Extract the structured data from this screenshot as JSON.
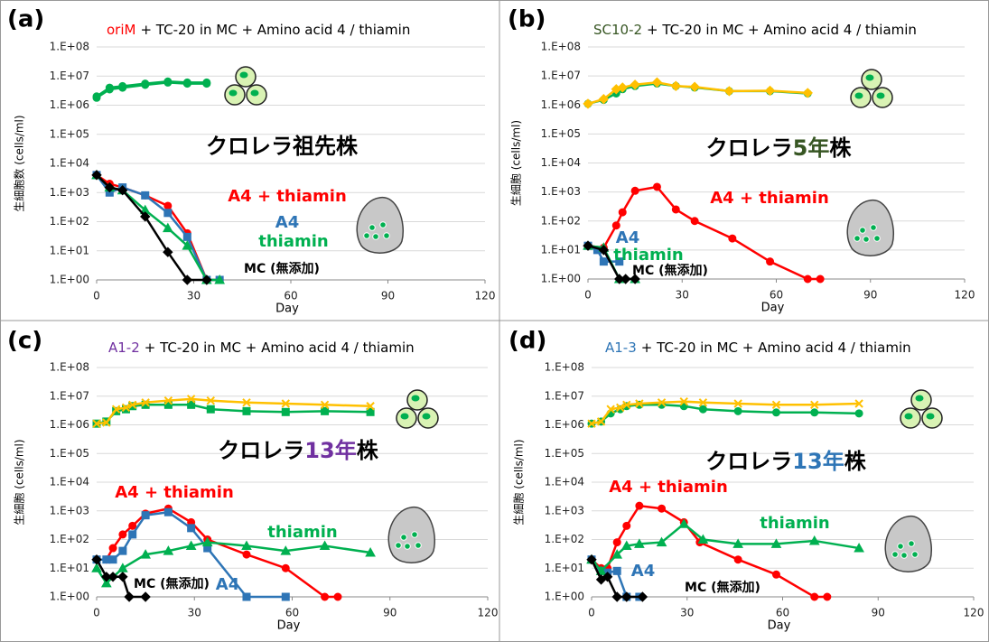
{
  "chart_data": [
    {
      "type": "line",
      "panel_label": "(a)",
      "title_prefix": "oriM",
      "title_prefix_color": "#ff0000",
      "title": "+ TC-20 in MC + Amino acid 4 / thiamin",
      "strain_label": [
        {
          "text": "クロレラ祖先株",
          "color": "#000000"
        }
      ],
      "xlabel": "Day",
      "ylabel": "生細胞数 (cells/ml)",
      "xlim": [
        0,
        120
      ],
      "xticks": [
        0,
        30,
        60,
        90,
        120
      ],
      "ylim": [
        1,
        100000000
      ],
      "log_y": true,
      "grid": true,
      "yticks": [
        {
          "value": 1,
          "label": "1.E+00"
        },
        {
          "value": 10,
          "label": "1.E+01"
        },
        {
          "value": 100,
          "label": "1.E+02"
        },
        {
          "value": 1000,
          "label": "1.E+03"
        },
        {
          "value": 10000,
          "label": "1.E+04"
        },
        {
          "value": 100000,
          "label": "1.E+05"
        },
        {
          "value": 1000000,
          "label": "1.E+06"
        },
        {
          "value": 10000000,
          "label": "1.E+07"
        },
        {
          "value": 100000000,
          "label": "1.E+08"
        }
      ],
      "series": [
        {
          "color": "#00b050",
          "marker": "circle",
          "x": [
            0,
            4,
            8,
            15,
            22,
            28,
            34
          ],
          "values": [
            1800000,
            3500000,
            4000000,
            5000000,
            6000000,
            5500000,
            5500000
          ]
        },
        {
          "color": "#00b050",
          "marker": "circle",
          "x": [
            0,
            4,
            8,
            15,
            22,
            28,
            34
          ],
          "values": [
            2000000,
            4000000,
            4500000,
            5500000,
            6500000,
            6000000,
            6000000
          ]
        },
        {
          "name": "A4 + thiamin",
          "color": "#ff0000",
          "marker": "circle",
          "x": [
            0,
            4,
            8,
            15,
            22,
            28,
            34,
            38
          ],
          "values": [
            4000,
            2000,
            1500,
            800,
            350,
            40,
            1,
            1
          ]
        },
        {
          "name": "A4",
          "color": "#2e75b6",
          "marker": "square",
          "x": [
            0,
            4,
            8,
            15,
            22,
            28,
            34,
            38
          ],
          "values": [
            4000,
            1000,
            1500,
            800,
            200,
            30,
            1,
            1
          ]
        },
        {
          "name": "thiamin",
          "color": "#00b050",
          "marker": "triangle",
          "x": [
            0,
            4,
            8,
            15,
            22,
            28,
            34,
            38
          ],
          "values": [
            4000,
            1500,
            1200,
            250,
            60,
            15,
            1,
            1
          ]
        },
        {
          "name": "MC (無添加)",
          "color": "#000000",
          "marker": "diamond",
          "x": [
            0,
            4,
            8,
            15,
            22,
            28,
            34
          ],
          "values": [
            4000,
            1500,
            1200,
            150,
            9,
            1,
            1
          ]
        }
      ]
    },
    {
      "type": "line",
      "panel_label": "(b)",
      "title_prefix": "SC10-2",
      "title_prefix_color": "#375623",
      "title": "+ TC-20 in MC + Amino acid 4 / thiamin",
      "strain_label": [
        {
          "text": "クロレラ",
          "color": "#000000"
        },
        {
          "text": "5年",
          "color": "#375623"
        },
        {
          "text": "株",
          "color": "#000000"
        }
      ],
      "xlabel": "Day",
      "ylabel": "生細胞 (cells/ml)",
      "xlim": [
        0,
        120
      ],
      "xticks": [
        0,
        30,
        60,
        90,
        120
      ],
      "ylim": [
        1,
        100000000
      ],
      "log_y": true,
      "grid": true,
      "yticks": [
        {
          "value": 1,
          "label": "1.E+00"
        },
        {
          "value": 10,
          "label": "1.E+01"
        },
        {
          "value": 100,
          "label": "1.E+02"
        },
        {
          "value": 1000,
          "label": "1.E+03"
        },
        {
          "value": 10000,
          "label": "1.E+04"
        },
        {
          "value": 100000,
          "label": "1.E+05"
        },
        {
          "value": 1000000,
          "label": "1.E+06"
        },
        {
          "value": 10000000,
          "label": "1.E+07"
        },
        {
          "value": 100000000,
          "label": "1.E+08"
        }
      ],
      "series": [
        {
          "color": "#00b050",
          "marker": "circle",
          "x": [
            0,
            5,
            9,
            11,
            15,
            22,
            28,
            34,
            45,
            58,
            70
          ],
          "values": [
            1100000,
            1500000,
            2500000,
            3500000,
            4500000,
            5500000,
            4500000,
            4000000,
            3000000,
            3000000,
            2500000
          ]
        },
        {
          "color": "#ffc000",
          "marker": "diamond",
          "x": [
            0,
            5,
            9,
            11,
            15,
            22,
            28,
            34,
            45,
            58,
            70
          ],
          "values": [
            1100000,
            1600000,
            3500000,
            4000000,
            5000000,
            6000000,
            4500000,
            4200000,
            3000000,
            3100000,
            2600000
          ]
        },
        {
          "name": "A4 + thiamin",
          "color": "#ff0000",
          "marker": "circle",
          "x": [
            0,
            5,
            9,
            11,
            15,
            22,
            28,
            34,
            46,
            58,
            70,
            74
          ],
          "values": [
            14,
            12,
            70,
            200,
            1100,
            1500,
            250,
            100,
            25,
            4,
            1,
            1
          ]
        },
        {
          "name": "A4",
          "color": "#2e75b6",
          "marker": "square",
          "x": [
            0,
            3,
            5,
            10
          ],
          "values": [
            14,
            10,
            4,
            4
          ]
        },
        {
          "name": "thiamin",
          "color": "#00b050",
          "marker": "triangle",
          "x": [
            0,
            5,
            10,
            15
          ],
          "values": [
            14,
            12,
            1,
            1
          ]
        },
        {
          "name": "MC (無添加)",
          "color": "#000000",
          "marker": "diamond",
          "x": [
            0,
            5,
            10,
            12,
            15
          ],
          "values": [
            14,
            10,
            1,
            1,
            1
          ]
        }
      ]
    },
    {
      "type": "line",
      "panel_label": "(c)",
      "title_prefix": "A1-2",
      "title_prefix_color": "#7030a0",
      "title": "+ TC-20 in MC + Amino acid 4 / thiamin",
      "strain_label": [
        {
          "text": "クロレラ",
          "color": "#000000"
        },
        {
          "text": "13年",
          "color": "#7030a0"
        },
        {
          "text": "株",
          "color": "#000000"
        }
      ],
      "xlabel": "Day",
      "ylabel": "生細胞 (cells/ml)",
      "xlim": [
        0,
        120
      ],
      "xticks": [
        0,
        30,
        60,
        90,
        120
      ],
      "ylim": [
        1,
        100000000
      ],
      "log_y": true,
      "grid": true,
      "yticks": [
        {
          "value": 1,
          "label": "1.E+00"
        },
        {
          "value": 10,
          "label": "1.E+01"
        },
        {
          "value": 100,
          "label": "1.E+02"
        },
        {
          "value": 1000,
          "label": "1.E+03"
        },
        {
          "value": 10000,
          "label": "1.E+04"
        },
        {
          "value": 100000,
          "label": "1.E+05"
        },
        {
          "value": 1000000,
          "label": "1.E+06"
        },
        {
          "value": 10000000,
          "label": "1.E+07"
        },
        {
          "value": 100000000,
          "label": "1.E+08"
        }
      ],
      "series": [
        {
          "color": "#00b050",
          "marker": "square",
          "x": [
            0,
            3,
            6,
            9,
            11,
            15,
            22,
            29,
            35,
            46,
            58,
            70,
            84
          ],
          "values": [
            1100000,
            1300000,
            3000000,
            3500000,
            4500000,
            5000000,
            5000000,
            5000000,
            3500000,
            3000000,
            2800000,
            3000000,
            2800000
          ]
        },
        {
          "color": "#ffc000",
          "marker": "cross",
          "x": [
            0,
            3,
            6,
            9,
            11,
            15,
            22,
            29,
            35,
            46,
            58,
            70,
            84
          ],
          "values": [
            1100000,
            1200000,
            3500000,
            4000000,
            5000000,
            6000000,
            7000000,
            8000000,
            7000000,
            6000000,
            5500000,
            5000000,
            4500000
          ]
        },
        {
          "name": "A4 + thiamin",
          "color": "#ff0000",
          "marker": "circle",
          "x": [
            0,
            3,
            5,
            8,
            11,
            15,
            22,
            29,
            34,
            46,
            58,
            70,
            74
          ],
          "values": [
            20,
            20,
            50,
            150,
            300,
            800,
            1200,
            400,
            100,
            30,
            10,
            1,
            1
          ]
        },
        {
          "name": "A4",
          "color": "#2e75b6",
          "marker": "square",
          "x": [
            0,
            3,
            5,
            8,
            11,
            15,
            22,
            29,
            34,
            46,
            58
          ],
          "values": [
            20,
            20,
            20,
            40,
            150,
            700,
            900,
            250,
            50,
            1,
            1
          ]
        },
        {
          "name": "thiamin",
          "color": "#00b050",
          "marker": "triangle",
          "x": [
            0,
            3,
            8,
            15,
            22,
            29,
            34,
            46,
            58,
            70,
            84
          ],
          "values": [
            10,
            3,
            10,
            30,
            40,
            60,
            80,
            60,
            40,
            60,
            35
          ]
        },
        {
          "name": "MC (無添加)",
          "color": "#000000",
          "marker": "diamond",
          "x": [
            0,
            3,
            5,
            8,
            10,
            15
          ],
          "values": [
            20,
            5,
            5,
            5,
            1,
            1
          ]
        }
      ]
    },
    {
      "type": "line",
      "panel_label": "(d)",
      "title_prefix": "A1-3",
      "title_prefix_color": "#2e75b6",
      "title": "+ TC-20 in MC + Amino acid 4 / thiamin",
      "strain_label": [
        {
          "text": "クロレラ",
          "color": "#000000"
        },
        {
          "text": "13年",
          "color": "#2e75b6"
        },
        {
          "text": "株",
          "color": "#000000"
        }
      ],
      "xlabel": "Day",
      "ylabel": "生細胞 (cells/ml)",
      "xlim": [
        0,
        120
      ],
      "xticks": [
        0,
        30,
        60,
        90,
        120
      ],
      "ylim": [
        1,
        100000000
      ],
      "log_y": true,
      "grid": true,
      "yticks": [
        {
          "value": 1,
          "label": "1.E+00"
        },
        {
          "value": 10,
          "label": "1.E+01"
        },
        {
          "value": 100,
          "label": "1.E+02"
        },
        {
          "value": 1000,
          "label": "1.E+03"
        },
        {
          "value": 10000,
          "label": "1.E+04"
        },
        {
          "value": 100000,
          "label": "1.E+05"
        },
        {
          "value": 1000000,
          "label": "1.E+06"
        },
        {
          "value": 10000000,
          "label": "1.E+07"
        },
        {
          "value": 100000000,
          "label": "1.E+08"
        }
      ],
      "series": [
        {
          "color": "#00b050",
          "marker": "circle",
          "x": [
            0,
            3,
            6,
            9,
            11,
            15,
            22,
            29,
            35,
            46,
            58,
            70,
            84
          ],
          "values": [
            1100000,
            1300000,
            2500000,
            3500000,
            4500000,
            5000000,
            5000000,
            4500000,
            3500000,
            3000000,
            2700000,
            2700000,
            2500000
          ]
        },
        {
          "color": "#ffc000",
          "marker": "cross",
          "x": [
            0,
            3,
            6,
            9,
            11,
            15,
            22,
            29,
            35,
            46,
            58,
            70,
            84
          ],
          "values": [
            1100000,
            1300000,
            3500000,
            4000000,
            5000000,
            5500000,
            6000000,
            6500000,
            6000000,
            5500000,
            5000000,
            5000000,
            5500000
          ]
        },
        {
          "name": "A4 + thiamin",
          "color": "#ff0000",
          "marker": "circle",
          "x": [
            0,
            3,
            5,
            8,
            11,
            15,
            22,
            29,
            34,
            46,
            58,
            70,
            74
          ],
          "values": [
            20,
            10,
            10,
            80,
            300,
            1500,
            1200,
            400,
            80,
            20,
            6,
            1,
            1
          ]
        },
        {
          "name": "A4",
          "color": "#2e75b6",
          "marker": "square",
          "x": [
            0,
            3,
            5,
            8,
            11,
            15
          ],
          "values": [
            20,
            8,
            7,
            8,
            1,
            1
          ]
        },
        {
          "name": "thiamin",
          "color": "#00b050",
          "marker": "triangle",
          "x": [
            0,
            3,
            8,
            11,
            15,
            22,
            29,
            35,
            46,
            58,
            70,
            84
          ],
          "values": [
            20,
            8,
            30,
            60,
            70,
            80,
            350,
            100,
            70,
            70,
            90,
            50
          ]
        },
        {
          "name": "MC (無添加)",
          "color": "#000000",
          "marker": "diamond",
          "x": [
            0,
            3,
            5,
            8,
            11,
            16
          ],
          "values": [
            20,
            4,
            5,
            1,
            1,
            1
          ]
        }
      ]
    }
  ]
}
